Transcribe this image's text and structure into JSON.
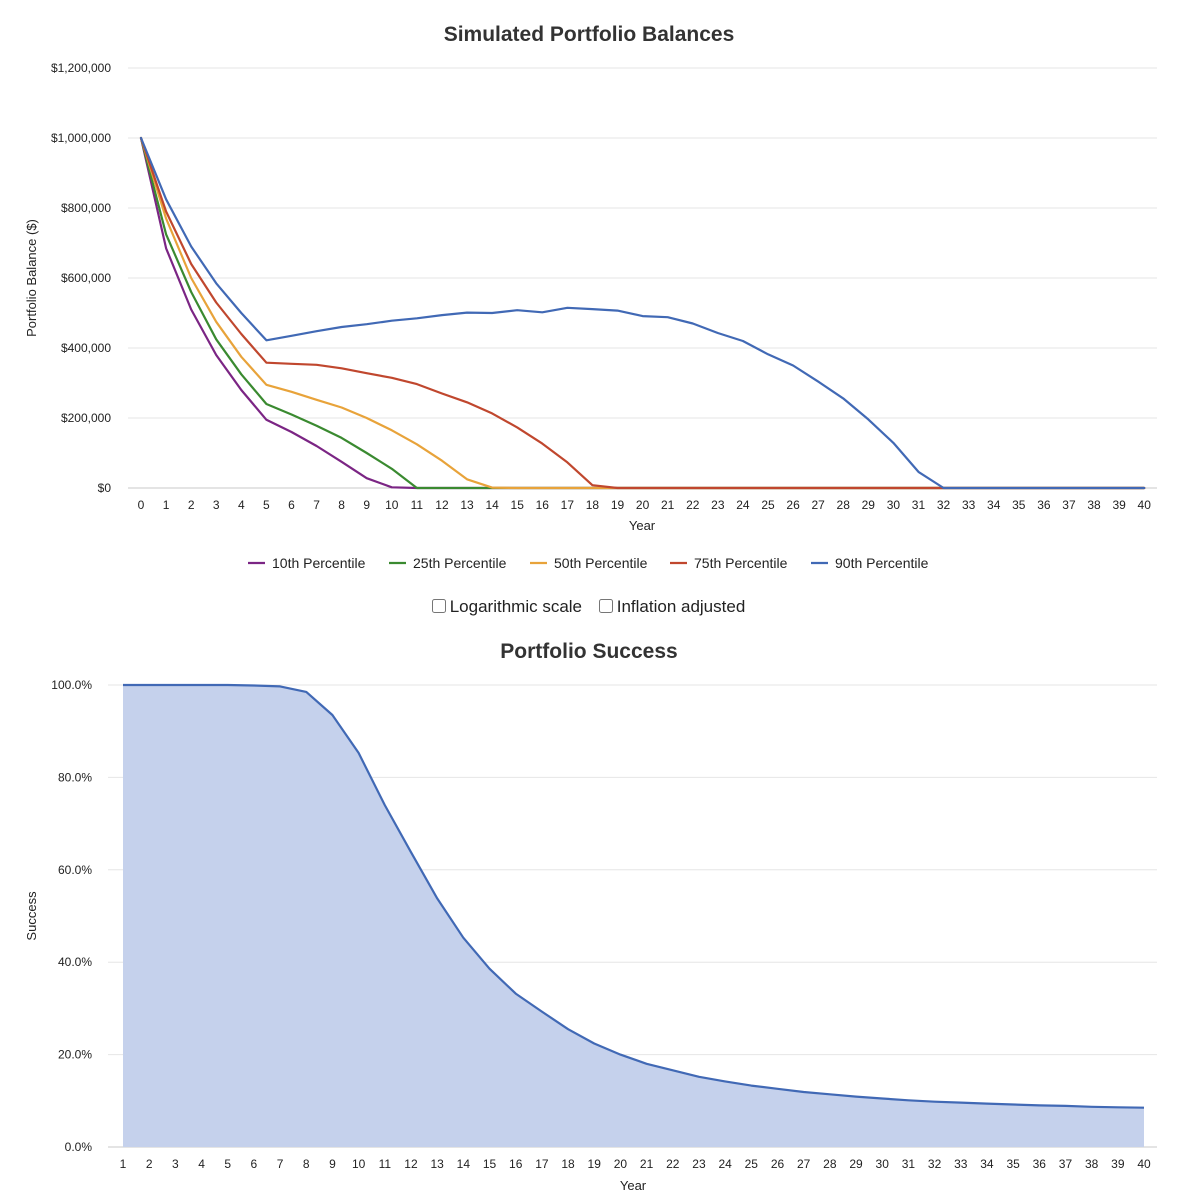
{
  "chart_data": [
    {
      "type": "line",
      "title": "Simulated Portfolio Balances",
      "xlabel": "Year",
      "ylabel": "Portfolio Balance ($)",
      "x": [
        0,
        1,
        2,
        3,
        4,
        5,
        6,
        7,
        8,
        9,
        10,
        11,
        12,
        13,
        14,
        15,
        16,
        17,
        18,
        19,
        20,
        21,
        22,
        23,
        24,
        25,
        26,
        27,
        28,
        29,
        30,
        31,
        32,
        33,
        34,
        35,
        36,
        37,
        38,
        39,
        40
      ],
      "x_tick_labels": [
        "0",
        "1",
        "2",
        "3",
        "4",
        "5",
        "6",
        "7",
        "8",
        "9",
        "10",
        "11",
        "12",
        "13",
        "14",
        "15",
        "16",
        "17",
        "18",
        "19",
        "20",
        "21",
        "22",
        "23",
        "24",
        "25",
        "26",
        "27",
        "28",
        "29",
        "30",
        "31",
        "32",
        "33",
        "34",
        "35",
        "36",
        "37",
        "38",
        "39",
        "40"
      ],
      "ylim": [
        0,
        1200000
      ],
      "y_ticks": [
        0,
        200000,
        400000,
        600000,
        800000,
        1000000,
        1200000
      ],
      "y_tick_labels": [
        "$0",
        "$200,000",
        "$400,000",
        "$600,000",
        "$800,000",
        "$1,000,000",
        "$1,200,000"
      ],
      "grid": true,
      "legend": "bottom",
      "series": [
        {
          "name": "10th Percentile",
          "color": "#7b2584",
          "values": [
            1000000,
            685000,
            510000,
            380000,
            280000,
            195000,
            160000,
            120000,
            75000,
            28000,
            2000,
            0,
            0,
            0,
            0,
            0,
            0,
            0,
            0,
            0,
            0,
            0,
            0,
            0,
            0,
            0,
            0,
            0,
            0,
            0,
            0,
            0,
            0,
            0,
            0,
            0,
            0,
            0,
            0,
            0,
            0
          ]
        },
        {
          "name": "25th Percentile",
          "color": "#3a8a30",
          "values": [
            1000000,
            725000,
            560000,
            425000,
            325000,
            240000,
            210000,
            178000,
            143000,
            100000,
            55000,
            0,
            0,
            0,
            0,
            0,
            0,
            0,
            0,
            0,
            0,
            0,
            0,
            0,
            0,
            0,
            0,
            0,
            0,
            0,
            0,
            0,
            0,
            0,
            0,
            0,
            0,
            0,
            0,
            0,
            0
          ]
        },
        {
          "name": "50th Percentile",
          "color": "#e8a33a",
          "values": [
            1000000,
            770000,
            600000,
            475000,
            375000,
            295000,
            275000,
            252000,
            230000,
            200000,
            165000,
            125000,
            78000,
            25000,
            1000,
            0,
            0,
            0,
            0,
            0,
            0,
            0,
            0,
            0,
            0,
            0,
            0,
            0,
            0,
            0,
            0,
            0,
            0,
            0,
            0,
            0,
            0,
            0,
            0,
            0,
            0
          ]
        },
        {
          "name": "75th Percentile",
          "color": "#c0472e",
          "values": [
            1000000,
            790000,
            640000,
            530000,
            440000,
            358000,
            355000,
            352000,
            342000,
            328000,
            315000,
            297000,
            270000,
            245000,
            213000,
            173000,
            127000,
            73000,
            8000,
            0,
            0,
            0,
            0,
            0,
            0,
            0,
            0,
            0,
            0,
            0,
            0,
            0,
            0,
            0,
            0,
            0,
            0,
            0,
            0,
            0,
            0
          ]
        },
        {
          "name": "90th Percentile",
          "color": "#4169b5",
          "values": [
            1000000,
            825000,
            690000,
            585000,
            500000,
            422000,
            435000,
            448000,
            460000,
            468000,
            478000,
            485000,
            494000,
            501000,
            500000,
            508000,
            502000,
            515000,
            511000,
            507000,
            491000,
            488000,
            470000,
            443000,
            420000,
            382000,
            350000,
            304000,
            256000,
            196000,
            129000,
            46000,
            0,
            0,
            0,
            0,
            0,
            0,
            0,
            0,
            0
          ]
        }
      ]
    },
    {
      "type": "area",
      "title": "Portfolio Success",
      "xlabel": "Year",
      "ylabel": "Success",
      "x": [
        1,
        2,
        3,
        4,
        5,
        6,
        7,
        8,
        9,
        10,
        11,
        12,
        13,
        14,
        15,
        16,
        17,
        18,
        19,
        20,
        21,
        22,
        23,
        24,
        25,
        26,
        27,
        28,
        29,
        30,
        31,
        32,
        33,
        34,
        35,
        36,
        37,
        38,
        39,
        40
      ],
      "x_tick_labels": [
        "1",
        "2",
        "3",
        "4",
        "5",
        "6",
        "7",
        "8",
        "9",
        "10",
        "11",
        "12",
        "13",
        "14",
        "15",
        "16",
        "17",
        "18",
        "19",
        "20",
        "21",
        "22",
        "23",
        "24",
        "25",
        "26",
        "27",
        "28",
        "29",
        "30",
        "31",
        "32",
        "33",
        "34",
        "35",
        "36",
        "37",
        "38",
        "39",
        "40"
      ],
      "ylim": [
        0,
        100
      ],
      "y_ticks": [
        0,
        20,
        40,
        60,
        80,
        100
      ],
      "y_tick_labels": [
        "0.0%",
        "20.0%",
        "40.0%",
        "60.0%",
        "80.0%",
        "100.0%"
      ],
      "grid": true,
      "color": "#4169b5",
      "fill_color": "#c5d1ec",
      "values": [
        100,
        100,
        100,
        100,
        100,
        99.9,
        99.7,
        98.5,
        93.5,
        85.3,
        74,
        63.8,
        53.8,
        45.3,
        38.6,
        33.2,
        29.3,
        25.5,
        22.4,
        20,
        18,
        16.6,
        15.2,
        14.2,
        13.3,
        12.6,
        11.9,
        11.4,
        10.9,
        10.5,
        10.1,
        9.8,
        9.6,
        9.4,
        9.2,
        9,
        8.9,
        8.7,
        8.6,
        8.5
      ]
    }
  ],
  "controls": {
    "log_scale_label": "Logarithmic scale",
    "inflation_label": "Inflation adjusted"
  }
}
